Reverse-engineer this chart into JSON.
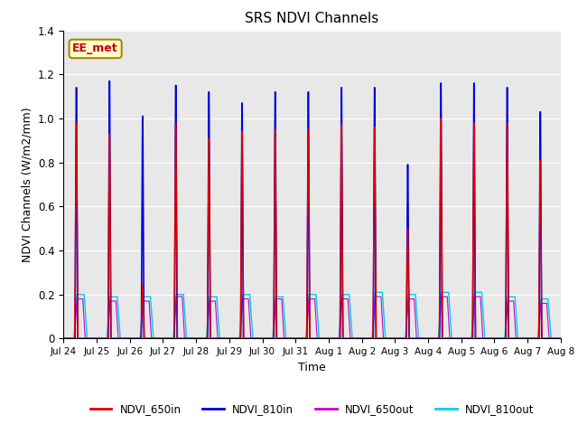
{
  "title": "SRS NDVI Channels",
  "ylabel": "NDVI Channels (W/m2/mm)",
  "xlabel": "Time",
  "ylim": [
    0.0,
    1.4
  ],
  "yticks": [
    0.0,
    0.2,
    0.4,
    0.6,
    0.8,
    1.0,
    1.2,
    1.4
  ],
  "xtick_labels": [
    "Jul 24",
    "Jul 25",
    "Jul 26",
    "Jul 27",
    "Jul 28",
    "Jul 29",
    "Jul 30",
    "Jul 31",
    "Aug 1",
    "Aug 2",
    "Aug 3",
    "Aug 4",
    "Aug 5",
    "Aug 6",
    "Aug 7",
    "Aug 8"
  ],
  "colors": {
    "NDVI_650in": "#dd0000",
    "NDVI_810in": "#0000dd",
    "NDVI_650out": "#cc00cc",
    "NDVI_810out": "#00ccee"
  },
  "background_color": "#e8e8e8",
  "annotation_text": "EE_met",
  "annotation_color": "#cc0000",
  "annotation_bg": "#ffffcc",
  "annotation_border": "#aa8800",
  "num_cycles": 15,
  "peak_650in": [
    0.98,
    0.93,
    0.25,
    0.98,
    0.91,
    0.94,
    0.95,
    0.95,
    0.97,
    0.96,
    0.5,
    1.0,
    0.98,
    0.98,
    0.81
  ],
  "peak_810in": [
    1.14,
    1.17,
    1.01,
    1.15,
    1.12,
    1.07,
    1.12,
    1.12,
    1.14,
    1.14,
    0.79,
    1.16,
    1.16,
    1.14,
    1.03
  ],
  "peak_810out": [
    0.2,
    0.19,
    0.19,
    0.2,
    0.19,
    0.2,
    0.19,
    0.2,
    0.2,
    0.21,
    0.2,
    0.21,
    0.21,
    0.19,
    0.18
  ],
  "peak_650out": [
    0.18,
    0.17,
    0.17,
    0.19,
    0.17,
    0.18,
    0.18,
    0.18,
    0.18,
    0.19,
    0.18,
    0.19,
    0.19,
    0.17,
    0.16
  ],
  "figsize": [
    6.4,
    4.8
  ],
  "dpi": 100
}
